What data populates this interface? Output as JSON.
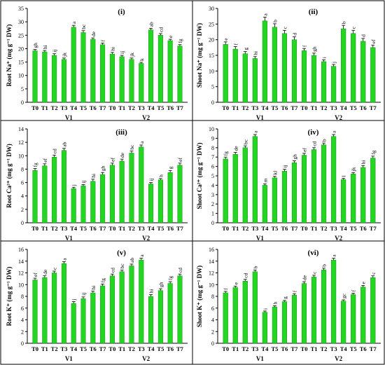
{
  "categories": [
    "T0",
    "T1",
    "T2",
    "T3",
    "T4",
    "T5",
    "T6",
    "T7"
  ],
  "groups": [
    "V1",
    "V2"
  ],
  "colors": {
    "bar": "#22d622",
    "bar_edge": "#0a7a0a",
    "error": "#000000",
    "frame": "#000000"
  },
  "chart_data": [
    {
      "type": "bar",
      "panel_title": "(i)",
      "ylabel": "Root Na⁺ (mg g⁻¹ DW)",
      "ylim": [
        0,
        35
      ],
      "yticks": [
        0,
        5,
        10,
        15,
        20,
        25,
        30,
        35
      ],
      "series": [
        {
          "group": "V1",
          "values": [
            19.2,
            18.8,
            17.5,
            16.0,
            28.0,
            26.0,
            23.5,
            21.5
          ],
          "errors": [
            0.5,
            0.5,
            0.6,
            0.5,
            0.7,
            0.7,
            0.5,
            0.6
          ],
          "letters": [
            "gh",
            "hi",
            "ij",
            "jk",
            "a",
            "bc",
            "de",
            "f"
          ]
        },
        {
          "group": "V2",
          "values": [
            18.0,
            17.0,
            16.0,
            14.5,
            27.0,
            25.0,
            23.0,
            21.0
          ],
          "errors": [
            0.6,
            0.5,
            0.5,
            0.4,
            0.6,
            0.6,
            0.5,
            0.5
          ],
          "letters": [
            "hi",
            "ij",
            "jk",
            "k",
            "ab",
            "cd",
            "e",
            "fg"
          ]
        }
      ]
    },
    {
      "type": "bar",
      "panel_title": "(ii)",
      "ylabel": "Shoot Na⁺ (mg g⁻¹ DW)",
      "ylim": [
        0,
        30
      ],
      "yticks": [
        0,
        5,
        10,
        15,
        20,
        25,
        30
      ],
      "series": [
        {
          "group": "V1",
          "values": [
            18.5,
            17.0,
            15.5,
            14.0,
            26.0,
            24.0,
            22.0,
            20.0
          ],
          "errors": [
            0.8,
            0.8,
            0.7,
            0.6,
            1.2,
            1.1,
            1.0,
            0.9
          ],
          "letters": [
            "e",
            "f",
            "g",
            "hi",
            "a",
            "b",
            "c",
            "d"
          ]
        },
        {
          "group": "V2",
          "values": [
            16.5,
            15.0,
            13.0,
            11.5,
            23.5,
            22.0,
            19.5,
            17.5
          ],
          "errors": [
            0.7,
            0.7,
            0.6,
            0.6,
            1.1,
            1.0,
            0.9,
            0.8
          ],
          "letters": [
            "f",
            "gh",
            "i",
            "j",
            "b",
            "c",
            "d",
            "ef"
          ]
        }
      ]
    },
    {
      "type": "bar",
      "panel_title": "(iii)",
      "ylabel": "Root Ca²⁺ (mg g⁻¹ DW)",
      "ylim": [
        0,
        14
      ],
      "yticks": [
        0,
        2,
        4,
        6,
        8,
        10,
        12,
        14
      ],
      "series": [
        {
          "group": "V1",
          "values": [
            7.8,
            8.5,
            9.8,
            10.8,
            5.1,
            5.5,
            6.2,
            7.2
          ],
          "errors": [
            0.3,
            0.3,
            0.3,
            0.3,
            0.2,
            0.2,
            0.3,
            0.3
          ],
          "letters": [
            "fg",
            "ef",
            "cd",
            "ab",
            "j",
            "ij",
            "hi",
            "gh"
          ]
        },
        {
          "group": "V2",
          "values": [
            8.6,
            9.2,
            10.4,
            11.3,
            5.8,
            6.4,
            7.5,
            8.6
          ],
          "errors": [
            0.3,
            0.3,
            0.3,
            0.3,
            0.2,
            0.2,
            0.3,
            0.3
          ],
          "letters": [
            "ef",
            "de",
            "bc",
            "a",
            "ij",
            "h",
            "g",
            "ef"
          ]
        }
      ]
    },
    {
      "type": "bar",
      "panel_title": "(iv)",
      "ylabel": "Shoot Ca²⁺ (mg g⁻¹ DW)",
      "ylim": [
        0,
        10
      ],
      "yticks": [
        0,
        1,
        2,
        3,
        4,
        5,
        6,
        7,
        8,
        9,
        10
      ],
      "series": [
        {
          "group": "V1",
          "values": [
            6.8,
            7.3,
            8.0,
            9.2,
            4.0,
            4.8,
            5.5,
            6.4
          ],
          "errors": [
            0.2,
            0.2,
            0.2,
            0.2,
            0.15,
            0.15,
            0.2,
            0.2
          ],
          "letters": [
            "fg",
            "de",
            "bc",
            "a",
            "m",
            "kl",
            "ij",
            "gh"
          ]
        },
        {
          "group": "V2",
          "values": [
            7.2,
            7.8,
            8.3,
            9.2,
            4.6,
            5.2,
            5.9,
            6.9
          ],
          "errors": [
            0.2,
            0.2,
            0.2,
            0.2,
            0.15,
            0.15,
            0.2,
            0.2
          ],
          "letters": [
            "ef",
            "cd",
            "b",
            "a",
            "l",
            "jk",
            "hi",
            "fg"
          ]
        }
      ]
    },
    {
      "type": "bar",
      "panel_title": "(v)",
      "ylabel": "Root K⁺ (mg g⁻¹ DW)",
      "ylim": [
        0,
        16
      ],
      "yticks": [
        0,
        2,
        4,
        6,
        8,
        10,
        12,
        14,
        16
      ],
      "series": [
        {
          "group": "V1",
          "values": [
            10.8,
            11.2,
            12.0,
            13.6,
            6.8,
            7.6,
            8.6,
            9.8
          ],
          "errors": [
            0.3,
            0.3,
            0.3,
            0.3,
            0.3,
            0.3,
            0.3,
            0.3
          ],
          "letters": [
            "ef",
            "de",
            "c",
            "a",
            "j",
            "ij",
            "hi",
            "fg"
          ]
        },
        {
          "group": "V2",
          "values": [
            11.5,
            12.2,
            13.2,
            14.2,
            8.0,
            9.0,
            10.2,
            11.5
          ],
          "errors": [
            0.3,
            0.3,
            0.3,
            0.3,
            0.3,
            0.3,
            0.3,
            0.3
          ],
          "letters": [
            "cd",
            "bc",
            "ab",
            "a",
            "hi",
            "gh",
            "fg",
            "cd"
          ]
        }
      ]
    },
    {
      "type": "bar",
      "panel_title": "(vi)",
      "ylabel": "Shoot K⁺ (mg g⁻¹ DW)",
      "ylim": [
        0,
        16
      ],
      "yticks": [
        0,
        2,
        4,
        6,
        8,
        10,
        12,
        14,
        16
      ],
      "series": [
        {
          "group": "V1",
          "values": [
            8.6,
            9.5,
            10.6,
            12.2,
            5.3,
            6.2,
            7.1,
            8.2
          ],
          "errors": [
            0.25,
            0.25,
            0.3,
            0.3,
            0.2,
            0.2,
            0.2,
            0.25
          ],
          "letters": [
            "f",
            "e",
            "cd",
            "b",
            "i",
            "h",
            "g",
            "f"
          ]
        },
        {
          "group": "V2",
          "values": [
            10.2,
            11.3,
            12.5,
            14.2,
            7.2,
            8.3,
            9.6,
            11.2
          ],
          "errors": [
            0.3,
            0.3,
            0.3,
            0.3,
            0.2,
            0.25,
            0.25,
            0.3
          ],
          "letters": [
            "de",
            "c",
            "b",
            "a",
            "gc",
            "f",
            "e",
            "c"
          ]
        }
      ]
    }
  ]
}
